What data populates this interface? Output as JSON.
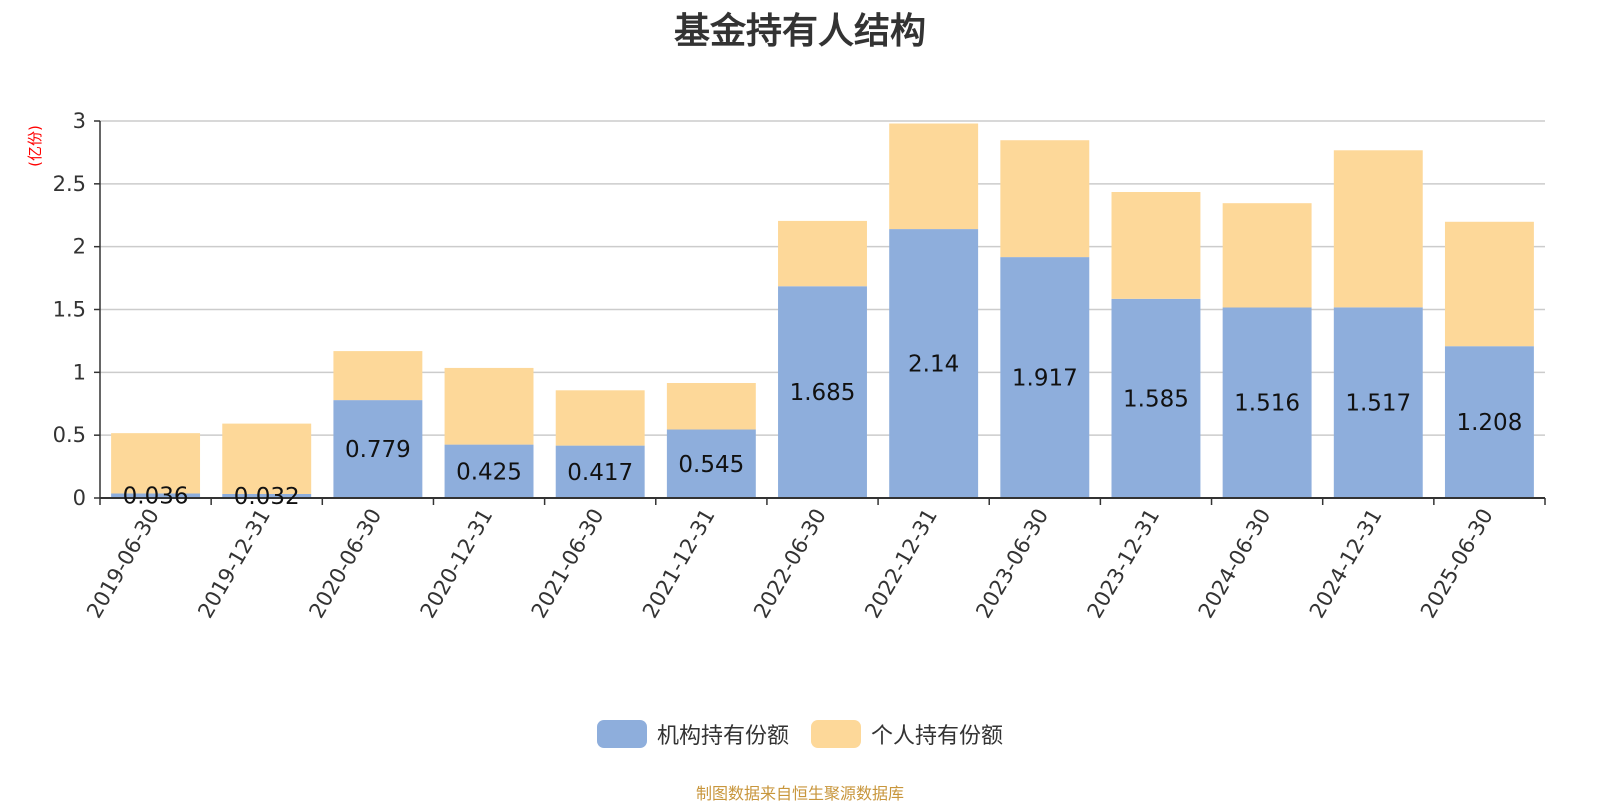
{
  "chart_data": {
    "type": "bar",
    "stacked": true,
    "title": "基金持有人结构",
    "ylabel": "(亿份)",
    "ylim": [
      0,
      3
    ],
    "yticks": [
      0,
      0.5,
      1,
      1.5,
      2,
      2.5,
      3
    ],
    "ytick_labels": [
      "0",
      "0.5",
      "1",
      "1.5",
      "2",
      "2.5",
      "3"
    ],
    "grid": true,
    "legend_position": "bottom",
    "categories": [
      "2019-06-30",
      "2019-12-31",
      "2020-06-30",
      "2020-12-31",
      "2021-06-30",
      "2021-12-31",
      "2022-06-30",
      "2022-12-31",
      "2023-06-30",
      "2023-12-31",
      "2024-06-30",
      "2024-12-31",
      "2025-06-30"
    ],
    "series": [
      {
        "name": "机构持有份额",
        "color": "#8eaedc",
        "values": [
          0.036,
          0.032,
          0.779,
          0.425,
          0.417,
          0.545,
          1.685,
          2.14,
          1.917,
          1.585,
          1.516,
          1.517,
          1.208
        ],
        "labels": [
          "0.036",
          "0.032",
          "0.779",
          "0.425",
          "0.417",
          "0.545",
          "1.685",
          "2.14",
          "1.917",
          "1.585",
          "1.516",
          "1.517",
          "1.208"
        ]
      },
      {
        "name": "个人持有份额",
        "color": "#fdd899",
        "values": [
          0.48,
          0.56,
          0.39,
          0.61,
          0.44,
          0.37,
          0.52,
          0.84,
          0.93,
          0.85,
          0.83,
          1.25,
          0.99
        ]
      }
    ],
    "source": "制图数据来自恒生聚源数据库"
  }
}
